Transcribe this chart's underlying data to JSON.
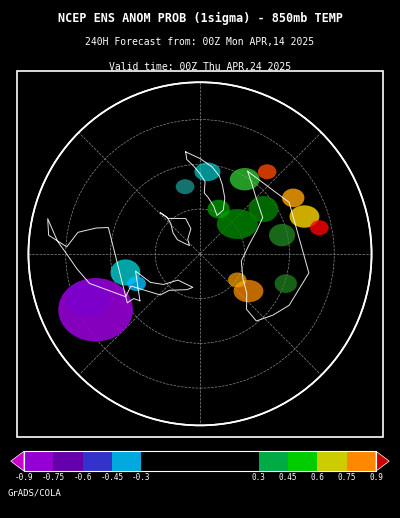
{
  "title_line1": "NCEP ENS ANOM PROB (1sigma) - 850mb TEMP",
  "title_line2": "240H Forecast from: 00Z Mon APR,14 2025",
  "title_line3": "Valid time: 00Z Thu APR,24 2025",
  "background_color": "#000000",
  "title_color": "#ffffff",
  "colorbar_values": [
    -0.9,
    -0.75,
    -0.6,
    -0.45,
    -0.3,
    0.3,
    0.45,
    0.6,
    0.75,
    0.9
  ],
  "colorbar_colors": [
    "#800080",
    "#9400D3",
    "#8B00FF",
    "#0000FF",
    "#00BFFF",
    "#00FF7F",
    "#00CC00",
    "#FFFF00",
    "#FFA500",
    "#FF0000"
  ],
  "colorbar_segment_colors": [
    "#9B30FF",
    "#7B2FBE",
    "#4B0082",
    "#00008B",
    "#00CED1",
    "#000000",
    "#008000",
    "#32CD32",
    "#FFD700",
    "#FF8C00",
    "#FF0000"
  ],
  "footer_text": "GrADS/COLA",
  "footer_color": "#ffffff",
  "map_border_color": "#ffffff",
  "figsize": [
    4.0,
    5.18
  ],
  "dpi": 100
}
